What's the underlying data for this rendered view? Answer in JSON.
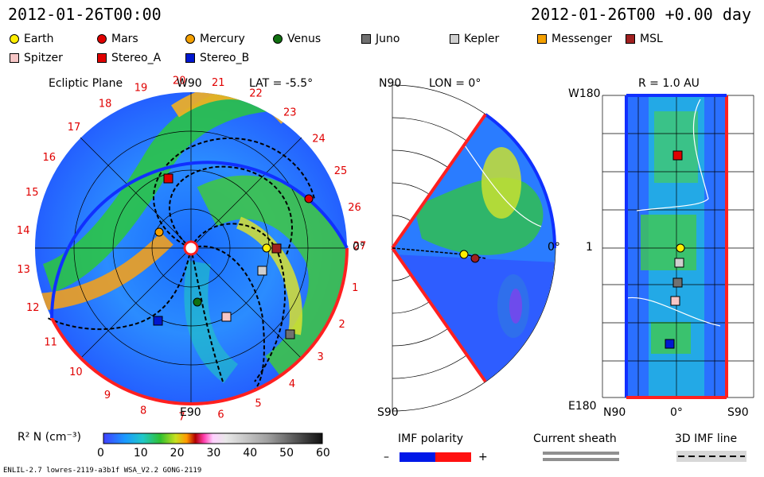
{
  "header": {
    "date_left": "2012-01-26T00:00",
    "date_right": "2012-01-26T00 +0.00 day"
  },
  "legend": [
    {
      "label": "Earth",
      "shape": "circle",
      "color": "#ffee00"
    },
    {
      "label": "Mars",
      "shape": "circle",
      "color": "#e00000"
    },
    {
      "label": "Mercury",
      "shape": "circle",
      "color": "#f4a000"
    },
    {
      "label": "Venus",
      "shape": "circle",
      "color": "#107010"
    },
    {
      "label": "Juno",
      "shape": "square",
      "color": "#707070"
    },
    {
      "label": "Kepler",
      "shape": "square",
      "color": "#cfcfcf"
    },
    {
      "label": "Messenger",
      "shape": "square",
      "color": "#f4a000"
    },
    {
      "label": "MSL",
      "shape": "square",
      "color": "#a02020"
    },
    {
      "label": "Spitzer",
      "shape": "square",
      "color": "#f7c6c6"
    },
    {
      "label": "Stereo_A",
      "shape": "square",
      "color": "#e00000"
    },
    {
      "label": "Stereo_B",
      "shape": "square",
      "color": "#0018d0"
    }
  ],
  "ecliptic": {
    "title": "Ecliptic Plane",
    "w90": "W90",
    "lat": "LAT = -5.5°",
    "e90": "E90",
    "zero": "0°",
    "cr_labels": [
      "1",
      "2",
      "3",
      "4",
      "5",
      "6",
      "7",
      "8",
      "9",
      "10",
      "11",
      "12",
      "13",
      "14",
      "15",
      "16",
      "17",
      "18",
      "19",
      "20",
      "21",
      "22",
      "23",
      "24",
      "25",
      "26",
      "27"
    ]
  },
  "meridional": {
    "n90": "N90",
    "lon": "LON = 0°",
    "zero": "0°",
    "s90": "S90"
  },
  "radial": {
    "r": "R = 1.0 AU",
    "w180": "W180",
    "one": "1",
    "e180": "E180",
    "n90": "N90",
    "zero": "0°",
    "s90": "S90"
  },
  "colorbar": {
    "label": "R² N (cm⁻³)",
    "ticks": [
      "0",
      "10",
      "20",
      "30",
      "40",
      "50",
      "60"
    ]
  },
  "imf": {
    "title": "IMF polarity",
    "minus": "–",
    "plus": "+",
    "neg_color": "#0018e8",
    "pos_color": "#ff1010"
  },
  "sheath": {
    "title": "Current sheath"
  },
  "imfline": {
    "title": "3D IMF line"
  },
  "footer": {
    "model": "ENLIL-2.7 lowres-2119-a3b1f WSA_V2.2 GONG-2119"
  }
}
